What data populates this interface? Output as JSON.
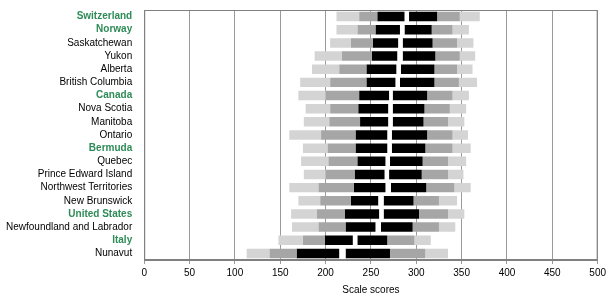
{
  "chart_data": {
    "type": "bar",
    "orientation": "horizontal",
    "x_label": "Scale scores",
    "categories": [
      "Switzerland",
      "Norway",
      "Saskatchewan",
      "Yukon",
      "Alberta",
      "British Columbia",
      "Canada",
      "Nova Scotia",
      "Manitoba",
      "Ontario",
      "Bermuda",
      "Quebec",
      "Prince Edward Island",
      "Northwest Territories",
      "New Brunswick",
      "United States",
      "Newfoundland and Labrador",
      "Italy",
      "Nunavut"
    ],
    "category_colors": [
      "#2e8b57",
      "#2e8b57",
      "#000000",
      "#000000",
      "#000000",
      "#000000",
      "#2e8b57",
      "#000000",
      "#000000",
      "#000000",
      "#2e8b57",
      "#000000",
      "#000000",
      "#000000",
      "#000000",
      "#2e8b57",
      "#000000",
      "#2e8b57",
      "#000000"
    ],
    "series": [
      {
        "color": "#d4d4d4",
        "values": [
          [
            212,
            237
          ],
          [
            212,
            235
          ],
          [
            205,
            228
          ],
          [
            188,
            218
          ],
          [
            185,
            215
          ],
          [
            172,
            205
          ],
          [
            170,
            200
          ],
          [
            178,
            205
          ],
          [
            176,
            204
          ],
          [
            160,
            195
          ],
          [
            175,
            202
          ],
          [
            173,
            203
          ],
          [
            176,
            200
          ],
          [
            160,
            192
          ],
          [
            170,
            194
          ],
          [
            162,
            190
          ],
          [
            163,
            192
          ],
          [
            148,
            175
          ],
          [
            113,
            138
          ]
        ]
      },
      {
        "color": "#a6a6a6",
        "values": [
          [
            237,
            257
          ],
          [
            235,
            255
          ],
          [
            228,
            252
          ],
          [
            218,
            251
          ],
          [
            215,
            245
          ],
          [
            205,
            245
          ],
          [
            200,
            237
          ],
          [
            205,
            236
          ],
          [
            204,
            238
          ],
          [
            195,
            233
          ],
          [
            202,
            233
          ],
          [
            203,
            235
          ],
          [
            200,
            232
          ],
          [
            192,
            231
          ],
          [
            194,
            228
          ],
          [
            190,
            221
          ],
          [
            192,
            222
          ],
          [
            175,
            199
          ],
          [
            138,
            168
          ]
        ]
      },
      {
        "color": "#000000",
        "values": [
          [
            257,
            287
          ],
          [
            255,
            282
          ],
          [
            252,
            280
          ],
          [
            251,
            279
          ],
          [
            245,
            278
          ],
          [
            245,
            277
          ],
          [
            237,
            270
          ],
          [
            236,
            269
          ],
          [
            238,
            269
          ],
          [
            233,
            268
          ],
          [
            233,
            268
          ],
          [
            235,
            266
          ],
          [
            232,
            265
          ],
          [
            231,
            266
          ],
          [
            228,
            258
          ],
          [
            221,
            259
          ],
          [
            222,
            255
          ],
          [
            199,
            230
          ],
          [
            168,
            215
          ]
        ]
      },
      {
        "color": "#ffffff",
        "values": [
          [
            287,
            292
          ],
          [
            282,
            287
          ],
          [
            280,
            285
          ],
          [
            279,
            285
          ],
          [
            278,
            283
          ],
          [
            277,
            282
          ],
          [
            270,
            274
          ],
          [
            269,
            274
          ],
          [
            269,
            274
          ],
          [
            268,
            273
          ],
          [
            268,
            273
          ],
          [
            266,
            271
          ],
          [
            265,
            270
          ],
          [
            266,
            272
          ],
          [
            258,
            264
          ],
          [
            259,
            264
          ],
          [
            255,
            261
          ],
          [
            230,
            235
          ],
          [
            215,
            222
          ]
        ]
      },
      {
        "color": "#000000",
        "values": [
          [
            292,
            323
          ],
          [
            287,
            317
          ],
          [
            285,
            318
          ],
          [
            285,
            321
          ],
          [
            283,
            320
          ],
          [
            282,
            320
          ],
          [
            274,
            312
          ],
          [
            274,
            309
          ],
          [
            274,
            308
          ],
          [
            273,
            312
          ],
          [
            273,
            310
          ],
          [
            271,
            307
          ],
          [
            270,
            306
          ],
          [
            272,
            311
          ],
          [
            264,
            297
          ],
          [
            264,
            303
          ],
          [
            261,
            296
          ],
          [
            235,
            268
          ],
          [
            222,
            271
          ]
        ]
      },
      {
        "color": "#a6a6a6",
        "values": [
          [
            323,
            348
          ],
          [
            317,
            340
          ],
          [
            318,
            345
          ],
          [
            321,
            348
          ],
          [
            320,
            345
          ],
          [
            320,
            347
          ],
          [
            312,
            340
          ],
          [
            309,
            337
          ],
          [
            308,
            335
          ],
          [
            312,
            340
          ],
          [
            310,
            340
          ],
          [
            307,
            335
          ],
          [
            306,
            335
          ],
          [
            311,
            342
          ],
          [
            297,
            325
          ],
          [
            303,
            335
          ],
          [
            296,
            325
          ],
          [
            268,
            298
          ],
          [
            271,
            310
          ]
        ]
      },
      {
        "color": "#d4d4d4",
        "values": [
          [
            348,
            370
          ],
          [
            340,
            358
          ],
          [
            345,
            363
          ],
          [
            348,
            365
          ],
          [
            345,
            362
          ],
          [
            347,
            367
          ],
          [
            340,
            358
          ],
          [
            337,
            355
          ],
          [
            335,
            353
          ],
          [
            340,
            357
          ],
          [
            340,
            360
          ],
          [
            335,
            355
          ],
          [
            335,
            352
          ],
          [
            342,
            360
          ],
          [
            325,
            345
          ],
          [
            335,
            353
          ],
          [
            325,
            343
          ],
          [
            298,
            316
          ],
          [
            310,
            335
          ]
        ]
      }
    ],
    "xlim": [
      0,
      500
    ],
    "xticks": [
      0,
      50,
      100,
      150,
      200,
      250,
      300,
      350,
      400,
      450,
      500
    ],
    "grid": true
  }
}
